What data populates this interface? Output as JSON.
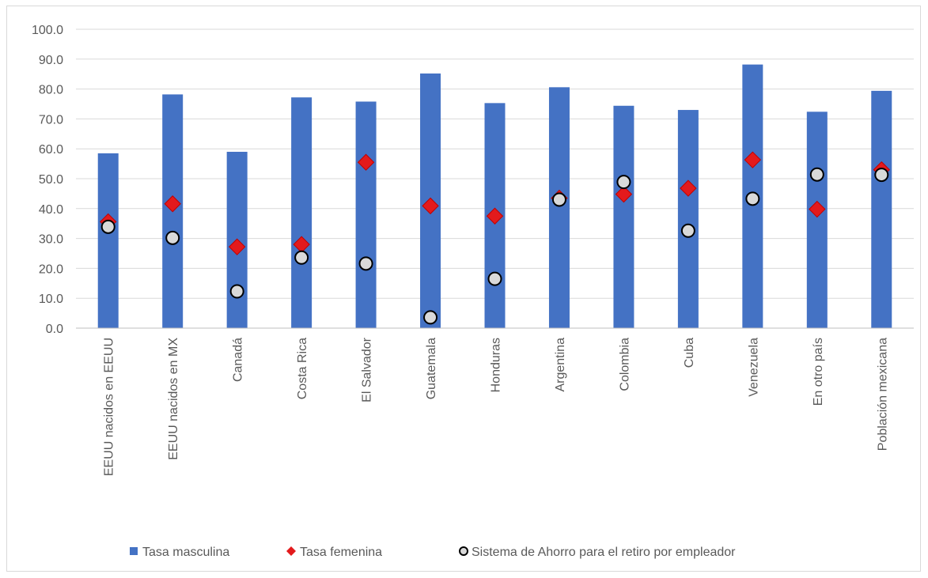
{
  "chart_data": {
    "type": "bar",
    "title": "",
    "xlabel": "",
    "ylabel": "",
    "ylim": [
      0,
      100
    ],
    "yticks": [
      0,
      10,
      20,
      30,
      40,
      50,
      60,
      70,
      80,
      90,
      100
    ],
    "ytick_labels": [
      "0.0",
      "10.0",
      "20.0",
      "30.0",
      "40.0",
      "50.0",
      "60.0",
      "70.0",
      "80.0",
      "90.0",
      "100.0"
    ],
    "grid": true,
    "legend_position": "bottom",
    "categories": [
      "EEUU nacidos en EEUU",
      "EEUU nacidos en MX",
      "Canadá",
      "Costa Rica",
      "El Salvador",
      "Guatemala",
      "Honduras",
      "Argentina",
      "Colombia",
      "Cuba",
      "Venezuela",
      "En otro país",
      "Población mexicana"
    ],
    "series": [
      {
        "name": "Tasa masculina",
        "kind": "bar",
        "color": "#4472c4",
        "values": [
          58.5,
          78.2,
          59.0,
          77.2,
          75.8,
          85.2,
          75.3,
          80.6,
          74.4,
          73.0,
          88.2,
          72.4,
          79.4
        ]
      },
      {
        "name": "Tasa femenina",
        "kind": "diamond",
        "color": "#e31a1c",
        "values": [
          35.6,
          41.6,
          27.2,
          28.0,
          55.5,
          40.9,
          37.5,
          43.5,
          44.8,
          46.8,
          56.3,
          39.8,
          53.0
        ]
      },
      {
        "name": "Sistema de Ahorro para el retiro por empleador",
        "kind": "circle",
        "color": "#d9d9d9",
        "values": [
          33.9,
          30.2,
          12.3,
          23.6,
          21.6,
          3.6,
          16.5,
          43.0,
          48.9,
          32.6,
          43.3,
          51.4,
          51.3
        ]
      }
    ]
  }
}
